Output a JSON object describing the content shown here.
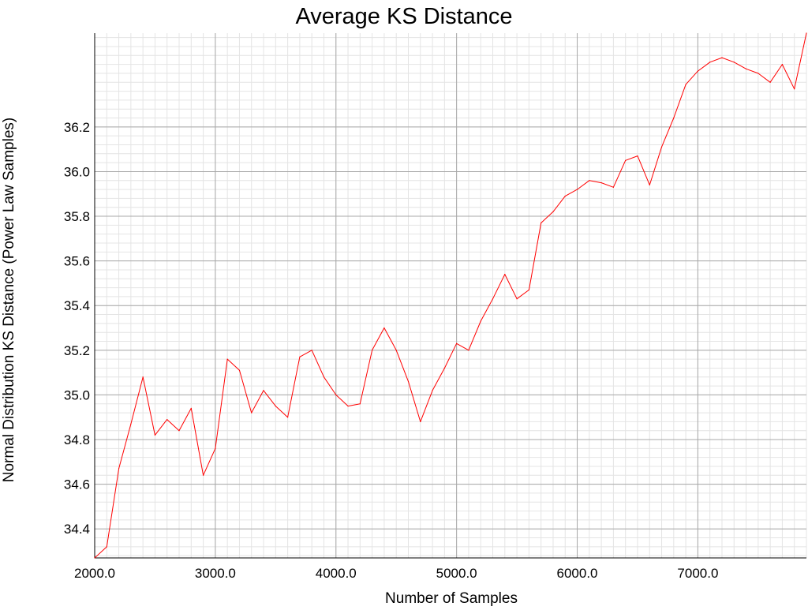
{
  "chart_data": {
    "type": "line",
    "title": "Average KS Distance",
    "xlabel": "Number of Samples",
    "ylabel": "Normal Distribution KS Distance (Power Law Samples)",
    "xlim": [
      2000,
      7900
    ],
    "ylim": [
      34.27,
      36.62
    ],
    "x_ticks": [
      2000,
      3000,
      4000,
      5000,
      6000,
      7000
    ],
    "x_tick_labels": [
      "2000.0",
      "3000.0",
      "4000.0",
      "5000.0",
      "6000.0",
      "7000.0"
    ],
    "y_ticks": [
      34.4,
      34.6,
      34.8,
      35.0,
      35.2,
      35.4,
      35.6,
      35.8,
      36.0,
      36.2
    ],
    "y_tick_labels": [
      "34.4",
      "34.6",
      "34.8",
      "35.0",
      "35.2",
      "35.4",
      "35.6",
      "35.8",
      "36.0",
      "36.2"
    ],
    "grid": true,
    "minor_grid": true,
    "series": [
      {
        "color": "#ff0000",
        "x": [
          2000,
          2100,
          2200,
          2300,
          2400,
          2500,
          2600,
          2700,
          2800,
          2900,
          3000,
          3100,
          3200,
          3300,
          3400,
          3500,
          3600,
          3700,
          3800,
          3900,
          4000,
          4100,
          4200,
          4300,
          4400,
          4500,
          4600,
          4700,
          4800,
          4900,
          5000,
          5100,
          5200,
          5300,
          5400,
          5500,
          5600,
          5700,
          5800,
          5900,
          6000,
          6100,
          6200,
          6300,
          6400,
          6500,
          6600,
          6700,
          6800,
          6900,
          7000,
          7100,
          7200,
          7300,
          7400,
          7500,
          7600,
          7700,
          7800,
          7900
        ],
        "values": [
          34.27,
          34.32,
          34.67,
          34.87,
          35.08,
          34.82,
          34.89,
          34.84,
          34.94,
          34.64,
          34.76,
          35.16,
          35.11,
          34.92,
          35.02,
          34.95,
          34.9,
          35.17,
          35.2,
          35.08,
          35.0,
          34.95,
          34.96,
          35.2,
          35.3,
          35.2,
          35.06,
          34.88,
          35.02,
          35.12,
          35.23,
          35.2,
          35.33,
          35.43,
          35.54,
          35.43,
          35.47,
          35.77,
          35.82,
          35.89,
          35.92,
          35.96,
          35.95,
          35.93,
          36.05,
          36.07,
          35.94,
          36.11,
          36.24,
          36.39,
          36.45,
          36.49,
          36.51,
          36.49,
          36.46,
          36.44,
          36.4,
          36.48,
          36.37,
          36.62
        ]
      }
    ]
  }
}
